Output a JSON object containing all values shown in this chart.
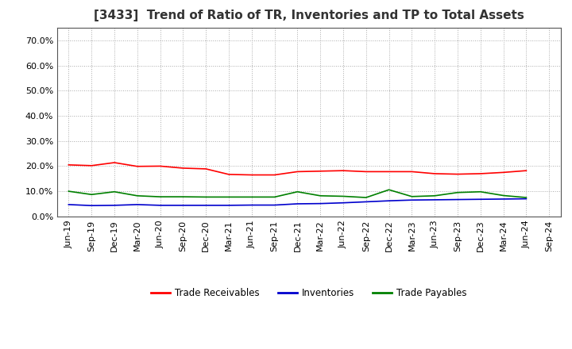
{
  "title": "[3433]  Trend of Ratio of TR, Inventories and TP to Total Assets",
  "x_labels": [
    "Jun-19",
    "Sep-19",
    "Dec-19",
    "Mar-20",
    "Jun-20",
    "Sep-20",
    "Dec-20",
    "Mar-21",
    "Jun-21",
    "Sep-21",
    "Dec-21",
    "Mar-22",
    "Jun-22",
    "Sep-22",
    "Dec-22",
    "Mar-23",
    "Jun-23",
    "Sep-23",
    "Dec-23",
    "Mar-24",
    "Jun-24",
    "Sep-24"
  ],
  "trade_receivables": [
    0.205,
    0.202,
    0.214,
    0.199,
    0.2,
    0.192,
    0.189,
    0.167,
    0.165,
    0.165,
    0.178,
    0.18,
    0.182,
    0.178,
    0.178,
    0.178,
    0.17,
    0.168,
    0.17,
    0.175,
    0.182,
    null
  ],
  "inventories": [
    0.047,
    0.043,
    0.044,
    0.047,
    0.044,
    0.044,
    0.044,
    0.044,
    0.045,
    0.045,
    0.05,
    0.051,
    0.054,
    0.058,
    0.062,
    0.065,
    0.066,
    0.067,
    0.068,
    0.069,
    0.07,
    null
  ],
  "trade_payables": [
    0.1,
    0.087,
    0.098,
    0.082,
    0.078,
    0.078,
    0.077,
    0.077,
    0.077,
    0.077,
    0.098,
    0.082,
    0.08,
    0.075,
    0.106,
    0.079,
    0.082,
    0.095,
    0.098,
    0.083,
    0.075,
    null
  ],
  "tr_color": "#ff0000",
  "inv_color": "#0000cd",
  "tp_color": "#008000",
  "ylim": [
    0.0,
    0.75
  ],
  "yticks": [
    0.0,
    0.1,
    0.2,
    0.3,
    0.4,
    0.5,
    0.6,
    0.7
  ],
  "background_color": "#ffffff",
  "grid_color": "#aaaaaa",
  "title_fontsize": 11,
  "tick_fontsize": 8,
  "legend_labels": [
    "Trade Receivables",
    "Inventories",
    "Trade Payables"
  ]
}
